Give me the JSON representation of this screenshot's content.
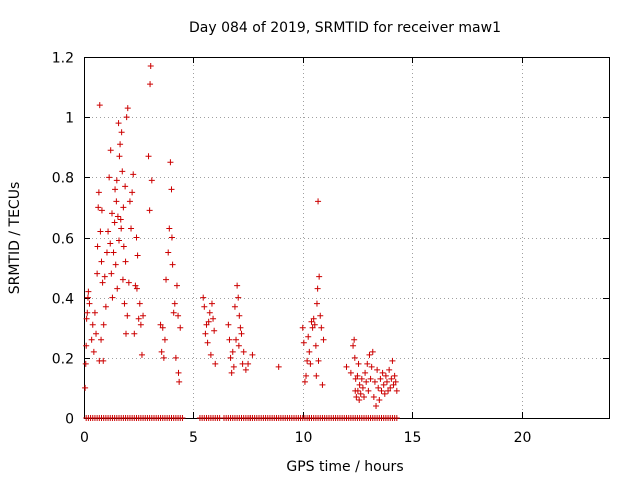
{
  "chart_data": {
    "type": "scatter",
    "title": "Day 084 of 2019, SRMTID for receiver maw1",
    "xlabel": "GPS time / hours",
    "ylabel": "SRMTID / TECUs",
    "xlim": [
      0,
      24
    ],
    "ylim": [
      0,
      1.2
    ],
    "xticks": [
      0,
      5,
      10,
      15,
      20
    ],
    "yticks": [
      0,
      0.2,
      0.4,
      0.6,
      0.8,
      1,
      1.2
    ],
    "xtick_labels": [
      "0",
      "5",
      "10",
      "15",
      "20"
    ],
    "ytick_labels": [
      "0",
      "0.2",
      "0.4",
      "0.6",
      "0.8",
      "1",
      "1.2"
    ],
    "grid": true,
    "legend": "none",
    "marker": "plus",
    "color": "#cc0000",
    "series": [
      {
        "name": "SRMTID",
        "points": [
          [
            0.05,
            0.1
          ],
          [
            0.08,
            0.18
          ],
          [
            0.1,
            0.24
          ],
          [
            0.12,
            0.33
          ],
          [
            0.15,
            0.35
          ],
          [
            0.18,
            0.4
          ],
          [
            0.2,
            0.42
          ],
          [
            0.25,
            0.38
          ],
          [
            0.35,
            0.26
          ],
          [
            0.4,
            0.31
          ],
          [
            0.45,
            0.22
          ],
          [
            0.5,
            0.35
          ],
          [
            0.55,
            0.28
          ],
          [
            0.6,
            0.48
          ],
          [
            0.62,
            0.57
          ],
          [
            0.65,
            0.7
          ],
          [
            0.68,
            0.75
          ],
          [
            0.7,
            0.19
          ],
          [
            0.72,
            1.04
          ],
          [
            0.75,
            0.62
          ],
          [
            0.78,
            0.26
          ],
          [
            0.8,
            0.52
          ],
          [
            0.82,
            0.69
          ],
          [
            0.85,
            0.45
          ],
          [
            0.88,
            0.19
          ],
          [
            0.9,
            0.31
          ],
          [
            0.95,
            0.47
          ],
          [
            1.0,
            0.37
          ],
          [
            1.05,
            0.55
          ],
          [
            1.1,
            0.62
          ],
          [
            1.15,
            0.8
          ],
          [
            1.2,
            0.58
          ],
          [
            1.22,
            0.89
          ],
          [
            1.25,
            0.48
          ],
          [
            1.28,
            0.68
          ],
          [
            1.3,
            0.4
          ],
          [
            1.35,
            0.55
          ],
          [
            1.4,
            0.65
          ],
          [
            1.42,
            0.76
          ],
          [
            1.45,
            0.51
          ],
          [
            1.48,
            0.72
          ],
          [
            1.5,
            0.79
          ],
          [
            1.52,
            0.43
          ],
          [
            1.55,
            0.67
          ],
          [
            1.58,
            0.98
          ],
          [
            1.6,
            0.59
          ],
          [
            1.62,
            0.87
          ],
          [
            1.65,
            0.91
          ],
          [
            1.68,
            0.66
          ],
          [
            1.7,
            0.63
          ],
          [
            1.72,
            0.95
          ],
          [
            1.75,
            0.82
          ],
          [
            1.78,
            0.46
          ],
          [
            1.8,
            0.7
          ],
          [
            1.82,
            0.57
          ],
          [
            1.85,
            0.38
          ],
          [
            1.88,
            0.77
          ],
          [
            1.9,
            0.52
          ],
          [
            1.92,
            0.28
          ],
          [
            1.95,
            1.0
          ],
          [
            1.98,
            0.34
          ],
          [
            2.0,
            1.03
          ],
          [
            2.05,
            0.45
          ],
          [
            2.1,
            0.72
          ],
          [
            2.15,
            0.63
          ],
          [
            2.2,
            0.75
          ],
          [
            2.25,
            0.81
          ],
          [
            2.3,
            0.28
          ],
          [
            2.35,
            0.44
          ],
          [
            2.4,
            0.6
          ],
          [
            2.42,
            0.43
          ],
          [
            2.45,
            0.54
          ],
          [
            2.5,
            0.33
          ],
          [
            2.55,
            0.38
          ],
          [
            2.6,
            0.31
          ],
          [
            2.65,
            0.21
          ],
          [
            2.7,
            0.34
          ],
          [
            2.95,
            0.87
          ],
          [
            3.0,
            0.69
          ],
          [
            3.02,
            1.11
          ],
          [
            3.05,
            1.17
          ],
          [
            3.1,
            0.79
          ],
          [
            3.5,
            0.31
          ],
          [
            3.55,
            0.22
          ],
          [
            3.6,
            0.3
          ],
          [
            3.65,
            0.2
          ],
          [
            3.7,
            0.26
          ],
          [
            3.75,
            0.46
          ],
          [
            3.85,
            0.55
          ],
          [
            3.9,
            0.63
          ],
          [
            3.95,
            0.85
          ],
          [
            4.0,
            0.76
          ],
          [
            4.02,
            0.6
          ],
          [
            4.05,
            0.51
          ],
          [
            4.1,
            0.35
          ],
          [
            4.15,
            0.38
          ],
          [
            4.2,
            0.2
          ],
          [
            4.25,
            0.44
          ],
          [
            4.3,
            0.34
          ],
          [
            4.32,
            0.15
          ],
          [
            4.35,
            0.12
          ],
          [
            4.4,
            0.3
          ],
          [
            5.45,
            0.4
          ],
          [
            5.5,
            0.37
          ],
          [
            5.55,
            0.28
          ],
          [
            5.6,
            0.31
          ],
          [
            5.65,
            0.25
          ],
          [
            5.7,
            0.32
          ],
          [
            5.75,
            0.35
          ],
          [
            5.8,
            0.21
          ],
          [
            5.85,
            0.38
          ],
          [
            5.9,
            0.33
          ],
          [
            5.95,
            0.29
          ],
          [
            6.0,
            0.18
          ],
          [
            6.6,
            0.31
          ],
          [
            6.65,
            0.26
          ],
          [
            6.7,
            0.2
          ],
          [
            6.75,
            0.15
          ],
          [
            6.8,
            0.22
          ],
          [
            6.85,
            0.17
          ],
          [
            6.9,
            0.37
          ],
          [
            6.95,
            0.26
          ],
          [
            7.0,
            0.44
          ],
          [
            7.05,
            0.4
          ],
          [
            7.08,
            0.24
          ],
          [
            7.1,
            0.34
          ],
          [
            7.15,
            0.3
          ],
          [
            7.2,
            0.28
          ],
          [
            7.25,
            0.18
          ],
          [
            7.3,
            0.22
          ],
          [
            7.4,
            0.16
          ],
          [
            7.5,
            0.18
          ],
          [
            7.7,
            0.21
          ],
          [
            8.9,
            0.17
          ],
          [
            10.0,
            0.3
          ],
          [
            10.05,
            0.25
          ],
          [
            10.1,
            0.12
          ],
          [
            10.15,
            0.14
          ],
          [
            10.2,
            0.19
          ],
          [
            10.25,
            0.27
          ],
          [
            10.3,
            0.22
          ],
          [
            10.35,
            0.18
          ],
          [
            10.4,
            0.32
          ],
          [
            10.45,
            0.3
          ],
          [
            10.5,
            0.33
          ],
          [
            10.55,
            0.31
          ],
          [
            10.6,
            0.24
          ],
          [
            10.62,
            0.14
          ],
          [
            10.65,
            0.38
          ],
          [
            10.68,
            0.43
          ],
          [
            10.7,
            0.72
          ],
          [
            10.72,
            0.19
          ],
          [
            10.75,
            0.47
          ],
          [
            10.8,
            0.34
          ],
          [
            10.85,
            0.3
          ],
          [
            10.9,
            0.11
          ],
          [
            10.95,
            0.26
          ],
          [
            12.0,
            0.17
          ],
          [
            12.2,
            0.15
          ],
          [
            12.3,
            0.24
          ],
          [
            12.35,
            0.26
          ],
          [
            12.38,
            0.2
          ],
          [
            12.4,
            0.09
          ],
          [
            12.42,
            0.13
          ],
          [
            12.45,
            0.07
          ],
          [
            12.5,
            0.14
          ],
          [
            12.52,
            0.09
          ],
          [
            12.55,
            0.18
          ],
          [
            12.58,
            0.06
          ],
          [
            12.6,
            0.11
          ],
          [
            12.65,
            0.08
          ],
          [
            12.7,
            0.13
          ],
          [
            12.75,
            0.1
          ],
          [
            12.8,
            0.07
          ],
          [
            12.85,
            0.15
          ],
          [
            12.9,
            0.12
          ],
          [
            12.95,
            0.18
          ],
          [
            13.0,
            0.09
          ],
          [
            13.05,
            0.21
          ],
          [
            13.1,
            0.13
          ],
          [
            13.15,
            0.17
          ],
          [
            13.2,
            0.22
          ],
          [
            13.25,
            0.07
          ],
          [
            13.3,
            0.12
          ],
          [
            13.35,
            0.04
          ],
          [
            13.4,
            0.16
          ],
          [
            13.45,
            0.1
          ],
          [
            13.5,
            0.06
          ],
          [
            13.55,
            0.13
          ],
          [
            13.6,
            0.09
          ],
          [
            13.65,
            0.15
          ],
          [
            13.7,
            0.11
          ],
          [
            13.75,
            0.08
          ],
          [
            13.8,
            0.14
          ],
          [
            13.85,
            0.12
          ],
          [
            13.9,
            0.09
          ],
          [
            13.95,
            0.16
          ],
          [
            14.0,
            0.1
          ],
          [
            14.05,
            0.13
          ],
          [
            14.1,
            0.19
          ],
          [
            14.15,
            0.11
          ],
          [
            14.2,
            0.14
          ],
          [
            14.25,
            0.12
          ],
          [
            14.3,
            0.09
          ]
        ],
        "zero_ranges": [
          [
            0.1,
            4.5
          ],
          [
            5.3,
            6.2
          ],
          [
            6.4,
            7.6
          ],
          [
            7.6,
            10.3
          ],
          [
            10.3,
            11.2
          ],
          [
            11.2,
            14.3
          ]
        ],
        "zero_step": 0.1
      }
    ]
  }
}
